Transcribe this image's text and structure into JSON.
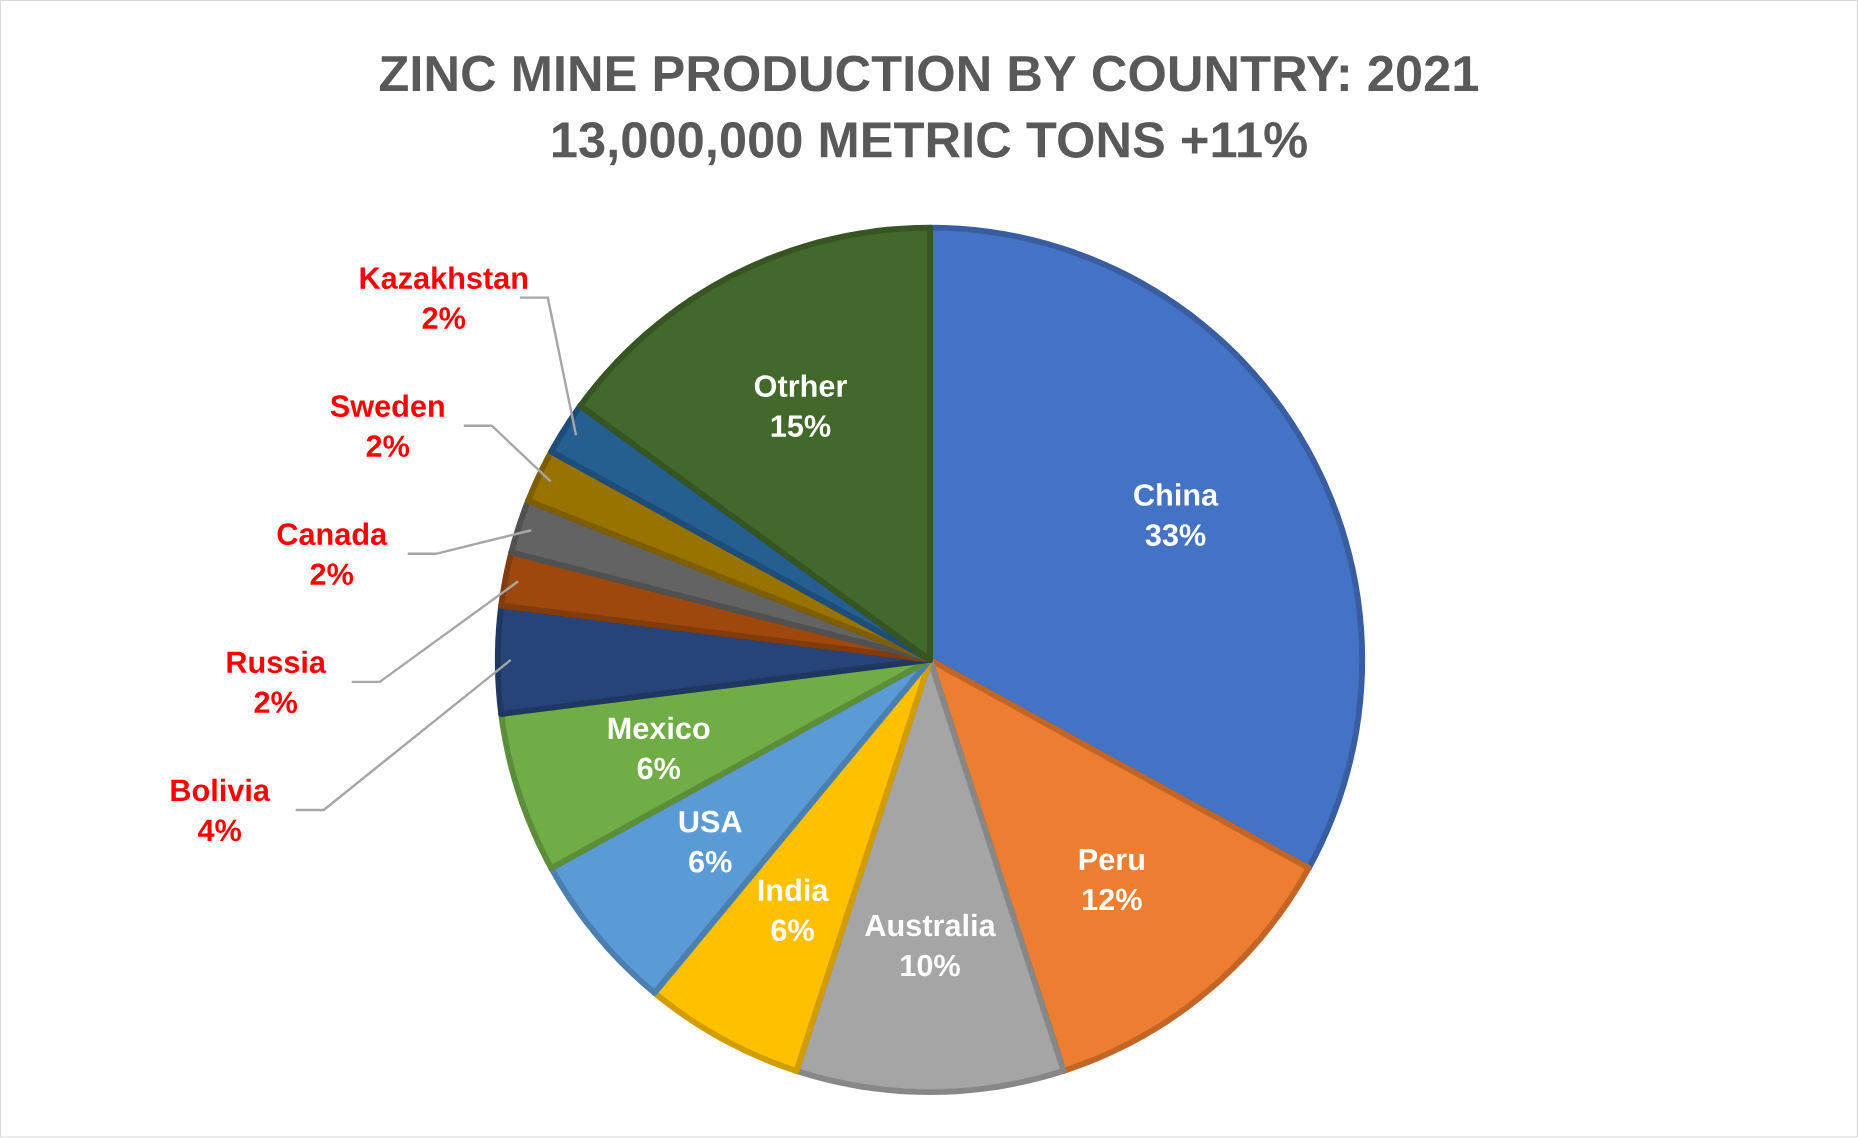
{
  "chart_data": {
    "type": "pie",
    "title": "ZINC MINE PRODUCTION BY COUNTRY: 2021",
    "subtitle": "13,000,000 METRIC TONS +11%",
    "categories": [
      "China",
      "Peru",
      "Australia",
      "India",
      "USA",
      "Mexico",
      "Bolivia",
      "Russia",
      "Canada",
      "Sweden",
      "Kazakhstan",
      "Otrher"
    ],
    "values": [
      33,
      12,
      10,
      6,
      6,
      6,
      4,
      2,
      2,
      2,
      2,
      15
    ],
    "colors": [
      "#4472c4",
      "#ed7d31",
      "#a5a5a5",
      "#ffc000",
      "#5b9bd5",
      "#70ad47",
      "#264478",
      "#9e480e",
      "#636363",
      "#997300",
      "#255e91",
      "#43682b"
    ],
    "value_labels": [
      "33%",
      "12%",
      "10%",
      "6%",
      "6%",
      "6%",
      "4%",
      "2%",
      "2%",
      "2%",
      "2%",
      "15%"
    ]
  }
}
